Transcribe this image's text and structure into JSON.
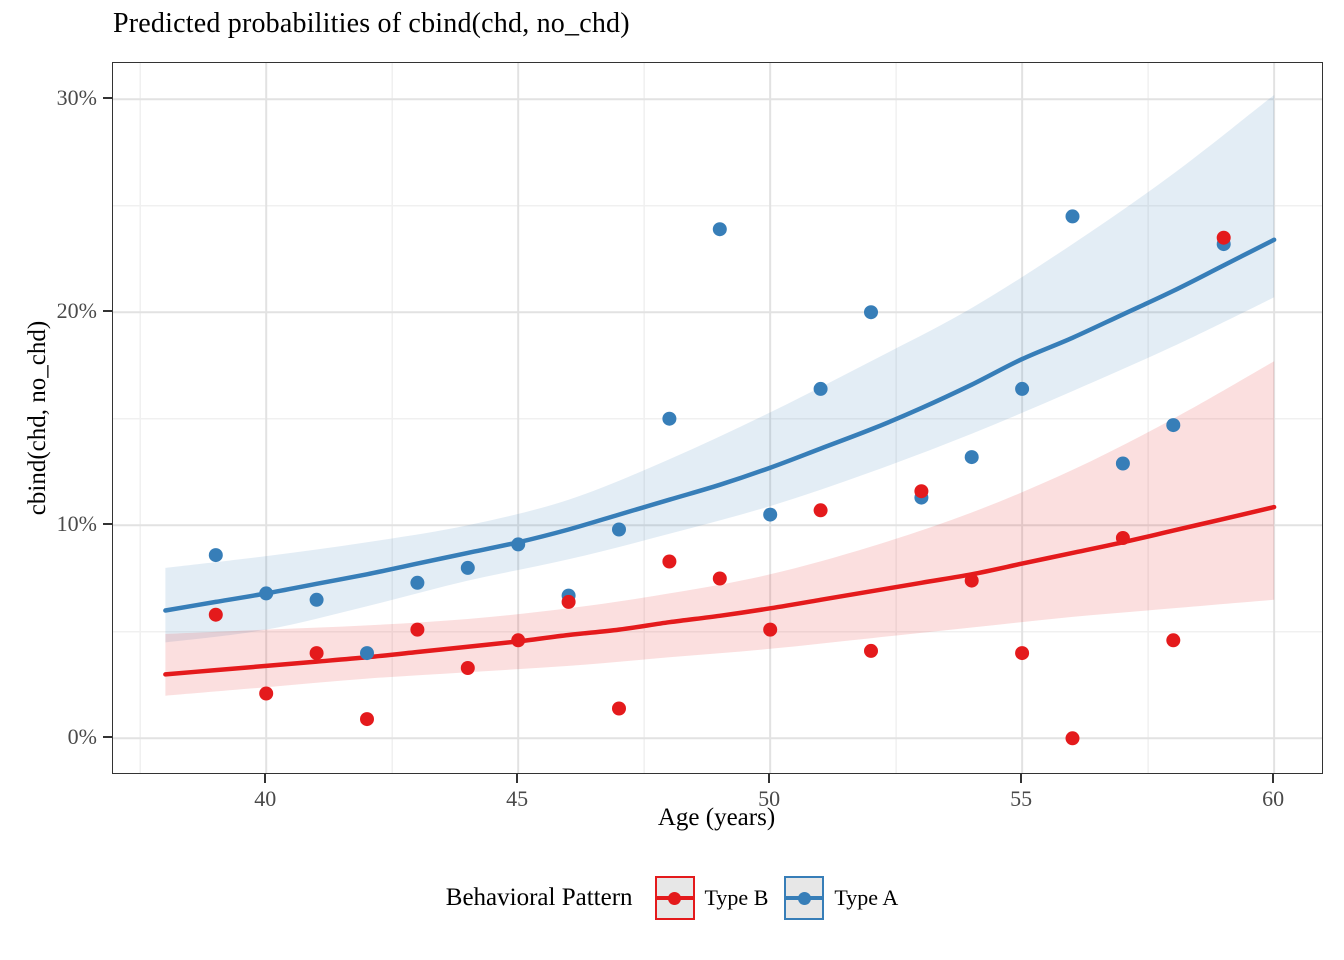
{
  "title": "Predicted probabilities of cbind(chd, no_chd)",
  "axes": {
    "x": {
      "label": "Age (years)",
      "tick_labels": [
        "40",
        "45",
        "50",
        "55",
        "60"
      ],
      "tick_values": [
        40,
        45,
        50,
        55,
        60
      ],
      "minor_ticks": [
        37.5,
        42.5,
        47.5,
        52.5,
        57.5
      ]
    },
    "y": {
      "label": "cbind(chd, no_chd)",
      "tick_labels": [
        "0%",
        "10%",
        "20%",
        "30%"
      ],
      "tick_values": [
        0,
        10,
        20,
        30
      ],
      "minor_ticks": [
        5,
        15,
        25
      ]
    }
  },
  "legend": {
    "title": "Behavioral Pattern",
    "items": [
      {
        "label": "Type B",
        "color": "#E41A1C"
      },
      {
        "label": "Type A",
        "color": "#377EB8"
      }
    ]
  },
  "style": {
    "grid_major_color": "#e2e2e2",
    "grid_minor_color": "#f0f0f0",
    "ribbon_opacity": 0.14,
    "point_radius": 7,
    "line_width": 4.5
  },
  "chart_data": {
    "type": "scatter",
    "title": "Predicted probabilities of cbind(chd, no_chd)",
    "xlabel": "Age (years)",
    "ylabel": "cbind(chd, no_chd)",
    "xlim": [
      36.96,
      60.95
    ],
    "ylim": [
      -1.63,
      31.7
    ],
    "y_unit": "percent",
    "grid": true,
    "legend_position": "bottom",
    "series": [
      {
        "name": "Type B",
        "color": "#E41A1C",
        "points": [
          [
            39,
            5.8
          ],
          [
            40,
            2.1
          ],
          [
            41,
            4.0
          ],
          [
            42,
            0.9
          ],
          [
            43,
            5.1
          ],
          [
            44,
            3.3
          ],
          [
            45,
            4.6
          ],
          [
            46,
            6.4
          ],
          [
            47,
            1.4
          ],
          [
            48,
            8.3
          ],
          [
            49,
            7.5
          ],
          [
            50,
            5.1
          ],
          [
            51,
            10.7
          ],
          [
            52,
            4.1
          ],
          [
            53,
            11.6
          ],
          [
            54,
            7.4
          ],
          [
            55,
            4.0
          ],
          [
            56,
            0.0
          ],
          [
            57,
            9.4
          ],
          [
            58,
            4.6
          ],
          [
            59,
            23.5
          ]
        ],
        "fit_line": [
          [
            38,
            3.0
          ],
          [
            39,
            3.2
          ],
          [
            40,
            3.4
          ],
          [
            41,
            3.6
          ],
          [
            42,
            3.8
          ],
          [
            43,
            4.05
          ],
          [
            44,
            4.3
          ],
          [
            45,
            4.55
          ],
          [
            46,
            4.85
          ],
          [
            47,
            5.1
          ],
          [
            48,
            5.45
          ],
          [
            49,
            5.75
          ],
          [
            50,
            6.1
          ],
          [
            51,
            6.5
          ],
          [
            52,
            6.9
          ],
          [
            53,
            7.3
          ],
          [
            54,
            7.7
          ],
          [
            55,
            8.2
          ],
          [
            56,
            8.7
          ],
          [
            57,
            9.2
          ],
          [
            58,
            9.75
          ],
          [
            59,
            10.3
          ],
          [
            60,
            10.85
          ]
        ],
        "ribbon_upper": [
          [
            38,
            4.9
          ],
          [
            40,
            5.1
          ],
          [
            42,
            5.3
          ],
          [
            44,
            5.6
          ],
          [
            46,
            6.1
          ],
          [
            48,
            6.8
          ],
          [
            50,
            7.7
          ],
          [
            52,
            9.0
          ],
          [
            54,
            10.6
          ],
          [
            56,
            12.6
          ],
          [
            58,
            15.0
          ],
          [
            60,
            17.7
          ]
        ],
        "ribbon_lower": [
          [
            38,
            2.0
          ],
          [
            40,
            2.4
          ],
          [
            42,
            2.8
          ],
          [
            44,
            3.1
          ],
          [
            46,
            3.4
          ],
          [
            48,
            3.8
          ],
          [
            50,
            4.2
          ],
          [
            52,
            4.7
          ],
          [
            54,
            5.2
          ],
          [
            56,
            5.7
          ],
          [
            58,
            6.1
          ],
          [
            60,
            6.5
          ]
        ]
      },
      {
        "name": "Type A",
        "color": "#377EB8",
        "points": [
          [
            39,
            8.6
          ],
          [
            40,
            6.8
          ],
          [
            41,
            6.5
          ],
          [
            42,
            4.0
          ],
          [
            43,
            7.3
          ],
          [
            44,
            8.0
          ],
          [
            45,
            9.1
          ],
          [
            46,
            6.7
          ],
          [
            47,
            9.8
          ],
          [
            48,
            15.0
          ],
          [
            49,
            23.9
          ],
          [
            50,
            10.5
          ],
          [
            51,
            16.4
          ],
          [
            52,
            20.0
          ],
          [
            53,
            11.3
          ],
          [
            54,
            13.2
          ],
          [
            55,
            16.4
          ],
          [
            56,
            24.5
          ],
          [
            57,
            12.9
          ],
          [
            58,
            14.7
          ],
          [
            59,
            23.2
          ]
        ],
        "fit_line": [
          [
            38,
            6.0
          ],
          [
            39,
            6.4
          ],
          [
            40,
            6.8
          ],
          [
            41,
            7.25
          ],
          [
            42,
            7.7
          ],
          [
            43,
            8.2
          ],
          [
            44,
            8.7
          ],
          [
            45,
            9.2
          ],
          [
            46,
            9.8
          ],
          [
            47,
            10.5
          ],
          [
            48,
            11.2
          ],
          [
            49,
            11.9
          ],
          [
            50,
            12.7
          ],
          [
            51,
            13.6
          ],
          [
            52,
            14.5
          ],
          [
            53,
            15.5
          ],
          [
            54,
            16.6
          ],
          [
            55,
            17.8
          ],
          [
            56,
            18.8
          ],
          [
            57,
            19.9
          ],
          [
            58,
            21.0
          ],
          [
            59,
            22.2
          ],
          [
            60,
            23.4
          ]
        ],
        "ribbon_upper": [
          [
            38,
            8.0
          ],
          [
            40,
            8.55
          ],
          [
            42,
            9.2
          ],
          [
            44,
            10.0
          ],
          [
            46,
            11.2
          ],
          [
            48,
            13.1
          ],
          [
            50,
            15.3
          ],
          [
            52,
            17.7
          ],
          [
            54,
            20.2
          ],
          [
            56,
            23.2
          ],
          [
            58,
            26.5
          ],
          [
            60,
            30.2
          ]
        ],
        "ribbon_lower": [
          [
            38,
            4.5
          ],
          [
            40,
            5.1
          ],
          [
            42,
            6.2
          ],
          [
            44,
            7.4
          ],
          [
            46,
            8.4
          ],
          [
            48,
            9.6
          ],
          [
            50,
            10.9
          ],
          [
            52,
            12.5
          ],
          [
            54,
            14.3
          ],
          [
            56,
            16.3
          ],
          [
            58,
            18.4
          ],
          [
            60,
            20.7
          ]
        ]
      }
    ]
  }
}
